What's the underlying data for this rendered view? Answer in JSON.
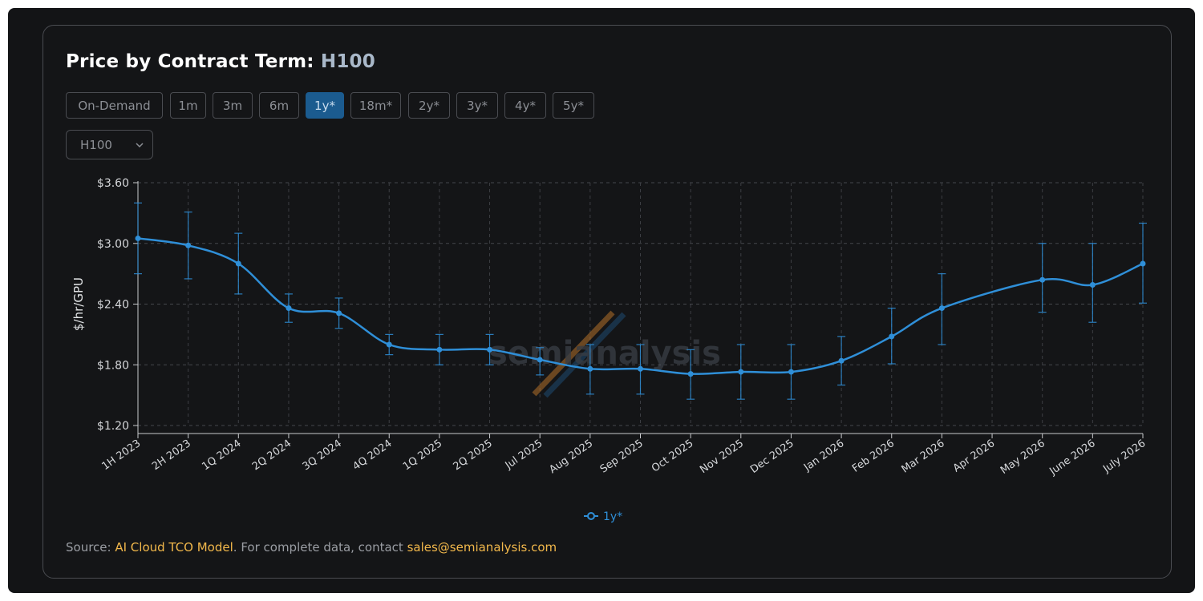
{
  "header": {
    "title_prefix": "Price by Contract Term: ",
    "title_model": "H100"
  },
  "tabs": [
    {
      "label": "On-Demand",
      "active": false
    },
    {
      "label": "1m",
      "active": false
    },
    {
      "label": "3m",
      "active": false
    },
    {
      "label": "6m",
      "active": false
    },
    {
      "label": "1y*",
      "active": true
    },
    {
      "label": "18m*",
      "active": false
    },
    {
      "label": "2y*",
      "active": false
    },
    {
      "label": "3y*",
      "active": false
    },
    {
      "label": "4y*",
      "active": false
    },
    {
      "label": "5y*",
      "active": false
    }
  ],
  "gpu_select": {
    "value": "H100",
    "icon": "chevron-down-icon"
  },
  "watermark": {
    "text": "semianalysis"
  },
  "source": {
    "prefix": "Source: ",
    "link1": "AI Cloud TCO Model",
    "middle": ". For complete data, contact ",
    "link2": "sales@semianalysis.com"
  },
  "colors": {
    "series": "#2f8fd8",
    "accent": "#f2b84b",
    "active_tab": "#1b5b8f",
    "background": "#141517"
  },
  "chart_data": {
    "type": "line",
    "ylabel": "$/hr/GPU",
    "xlabel": "",
    "ylim": [
      1.2,
      3.6
    ],
    "yticks": [
      1.2,
      1.8,
      2.4,
      3.0,
      3.6
    ],
    "ytick_labels": [
      "$1.20",
      "$1.80",
      "$2.40",
      "$3.00",
      "$3.60"
    ],
    "grid": true,
    "legend_position": "bottom-center",
    "categories": [
      "1H 2023",
      "2H 2023",
      "1Q 2024",
      "2Q 2024",
      "3Q 2024",
      "4Q 2024",
      "1Q 2025",
      "2Q 2025",
      "Jul 2025",
      "Aug 2025",
      "Sep 2025",
      "Oct 2025",
      "Nov 2025",
      "Dec 2025",
      "Jan 2026",
      "Feb 2026",
      "Mar 2026",
      "Apr 2026",
      "May 2026",
      "June 2026",
      "July 2026"
    ],
    "series": [
      {
        "name": "1y*",
        "values": [
          3.05,
          2.98,
          2.8,
          2.36,
          2.31,
          2.0,
          1.95,
          1.95,
          1.85,
          1.76,
          1.76,
          1.71,
          1.73,
          1.73,
          1.84,
          2.08,
          2.36,
          null,
          2.64,
          2.59,
          2.8
        ],
        "error_low": [
          2.7,
          2.65,
          2.5,
          2.22,
          2.16,
          1.9,
          1.8,
          1.8,
          1.7,
          1.51,
          1.51,
          1.46,
          1.46,
          1.46,
          1.6,
          1.81,
          2.0,
          null,
          2.32,
          2.22,
          2.41
        ],
        "error_high": [
          3.4,
          3.31,
          3.1,
          2.5,
          2.46,
          2.1,
          2.1,
          2.1,
          1.97,
          2.0,
          2.0,
          1.95,
          2.0,
          2.0,
          2.08,
          2.36,
          2.7,
          null,
          3.0,
          3.0,
          3.2
        ]
      }
    ]
  }
}
